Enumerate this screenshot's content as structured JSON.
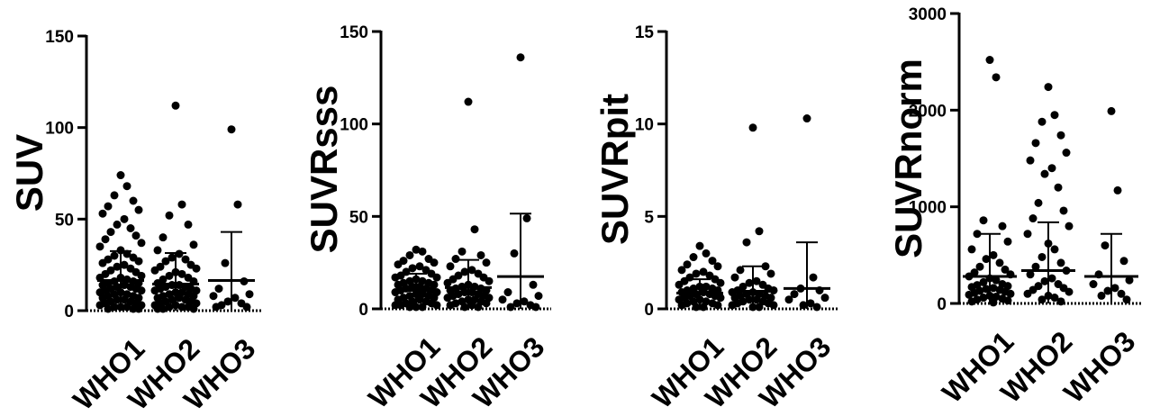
{
  "chart_data": [
    {
      "type": "scatter",
      "ylabel": "SUV",
      "ylim": [
        0,
        150
      ],
      "yticks": [
        0,
        50,
        100,
        150
      ],
      "categories": [
        "WHO1",
        "WHO2",
        "WHO3"
      ],
      "summary": [
        {
          "mean": 16.5,
          "sd_low": 0,
          "sd_high": 32.5
        },
        {
          "mean": 14.5,
          "sd_low": 0,
          "sd_high": 31.5
        },
        {
          "mean": 16.5,
          "sd_low": 0,
          "sd_high": 43
        }
      ],
      "series": [
        {
          "category": "WHO1",
          "values": [
            74,
            68,
            63,
            60,
            57,
            55,
            53,
            50,
            47,
            45,
            43,
            41,
            39,
            37,
            35,
            33,
            31,
            30,
            29,
            28,
            27,
            26,
            25,
            24,
            23,
            22,
            21,
            20,
            19,
            18,
            18,
            17,
            16,
            16,
            15,
            15,
            14,
            14,
            13,
            13,
            12,
            12,
            11,
            11,
            10,
            10,
            9,
            9,
            8,
            8,
            7,
            7,
            6,
            6,
            5,
            5,
            4,
            4,
            3,
            3,
            2,
            2,
            2,
            1,
            1,
            1
          ]
        },
        {
          "category": "WHO2",
          "values": [
            112,
            58,
            52,
            47,
            40,
            36,
            33,
            31,
            29,
            28,
            27,
            25,
            24,
            23,
            22,
            21,
            20,
            19,
            18,
            17,
            16,
            15,
            14,
            14,
            13,
            13,
            12,
            12,
            11,
            11,
            10,
            10,
            9,
            9,
            8,
            8,
            7,
            7,
            6,
            6,
            5,
            5,
            4,
            4,
            3,
            3,
            2,
            2,
            2,
            1,
            1,
            1
          ]
        },
        {
          "category": "WHO3",
          "values": [
            99,
            58,
            26,
            16,
            12,
            9,
            8,
            7,
            5,
            4,
            3,
            2,
            2
          ]
        }
      ]
    },
    {
      "type": "scatter",
      "ylabel": "SUVRsss",
      "ylim": [
        0,
        150
      ],
      "yticks": [
        0,
        50,
        100,
        150
      ],
      "categories": [
        "WHO1",
        "WHO2",
        "WHO3"
      ],
      "summary": [
        {
          "mean": 10,
          "sd_low": 2,
          "sd_high": 19
        },
        {
          "mean": 11.5,
          "sd_low": 2,
          "sd_high": 26.5
        },
        {
          "mean": 17.5,
          "sd_low": 0,
          "sd_high": 51.5
        }
      ],
      "series": [
        {
          "category": "WHO1",
          "values": [
            32,
            31,
            29,
            27,
            26,
            25,
            24,
            23,
            22,
            21,
            20,
            19,
            18,
            17,
            17,
            16,
            15,
            15,
            14,
            14,
            13,
            13,
            12,
            12,
            11,
            11,
            10,
            10,
            9,
            9,
            8,
            8,
            7,
            7,
            6,
            6,
            5,
            5,
            4,
            4,
            3,
            3,
            2,
            2,
            2,
            1,
            1,
            1
          ]
        },
        {
          "category": "WHO2",
          "values": [
            112,
            43,
            31,
            29,
            27,
            25,
            23,
            21,
            20,
            19,
            18,
            17,
            16,
            15,
            14,
            13,
            12,
            12,
            11,
            11,
            10,
            10,
            9,
            9,
            8,
            8,
            7,
            7,
            6,
            6,
            5,
            5,
            4,
            4,
            3,
            3,
            2,
            2,
            1,
            1
          ]
        },
        {
          "category": "WHO3",
          "values": [
            136,
            49,
            30,
            13,
            9,
            7,
            5,
            4,
            3,
            2,
            1,
            1
          ]
        }
      ]
    },
    {
      "type": "scatter",
      "ylabel": "SUVRpit",
      "ylim": [
        0,
        15
      ],
      "yticks": [
        0,
        5,
        10,
        15
      ],
      "categories": [
        "WHO1",
        "WHO2",
        "WHO3"
      ],
      "summary": [
        {
          "mean": 0.85,
          "sd_low": 0.2,
          "sd_high": 1.6
        },
        {
          "mean": 0.95,
          "sd_low": 0.2,
          "sd_high": 2.3
        },
        {
          "mean": 1.1,
          "sd_low": 0,
          "sd_high": 3.6
        }
      ],
      "series": [
        {
          "category": "WHO1",
          "values": [
            3.4,
            3.0,
            2.8,
            2.6,
            2.4,
            2.3,
            2.1,
            2.0,
            1.9,
            1.8,
            1.7,
            1.6,
            1.5,
            1.4,
            1.3,
            1.2,
            1.2,
            1.1,
            1.1,
            1.0,
            1.0,
            0.9,
            0.9,
            0.8,
            0.8,
            0.7,
            0.7,
            0.6,
            0.6,
            0.5,
            0.5,
            0.4,
            0.4,
            0.3,
            0.3,
            0.2,
            0.2,
            0.1,
            0.1
          ]
        },
        {
          "category": "WHO2",
          "values": [
            9.8,
            4.2,
            3.6,
            2.3,
            2.1,
            1.9,
            1.7,
            1.5,
            1.4,
            1.3,
            1.2,
            1.1,
            1.0,
            1.0,
            0.9,
            0.9,
            0.8,
            0.8,
            0.7,
            0.7,
            0.6,
            0.6,
            0.5,
            0.5,
            0.4,
            0.4,
            0.3,
            0.3,
            0.2,
            0.2,
            0.1,
            0.1
          ]
        },
        {
          "category": "WHO3",
          "values": [
            10.3,
            1.7,
            1.1,
            1.0,
            0.8,
            0.6,
            0.5,
            0.3,
            0.2,
            0.1
          ]
        }
      ]
    },
    {
      "type": "scatter",
      "ylabel": "SUVRnorm",
      "ylim": [
        0,
        3000
      ],
      "yticks": [
        0,
        1000,
        2000,
        3000
      ],
      "categories": [
        "WHO1",
        "WHO2",
        "WHO3"
      ],
      "summary": [
        {
          "mean": 280,
          "sd_low": 0,
          "sd_high": 720
        },
        {
          "mean": 340,
          "sd_low": 0,
          "sd_high": 840
        },
        {
          "mean": 280,
          "sd_low": 0,
          "sd_high": 720
        }
      ],
      "series": [
        {
          "category": "WHO1",
          "values": [
            2520,
            2340,
            860,
            800,
            720,
            640,
            560,
            500,
            460,
            420,
            380,
            350,
            320,
            300,
            280,
            260,
            240,
            220,
            200,
            190,
            180,
            170,
            160,
            150,
            140,
            130,
            120,
            110,
            100,
            90,
            80,
            70,
            60,
            50,
            40,
            30,
            20,
            10
          ]
        },
        {
          "category": "WHO2",
          "values": [
            2240,
            1950,
            1880,
            1740,
            1660,
            1560,
            1480,
            1400,
            1340,
            1200,
            1040,
            960,
            880,
            800,
            720,
            620,
            560,
            480,
            420,
            380,
            340,
            300,
            260,
            230,
            200,
            180,
            160,
            140,
            120,
            100,
            80,
            60,
            40,
            20
          ]
        },
        {
          "category": "WHO3",
          "values": [
            1990,
            1170,
            600,
            440,
            300,
            240,
            200,
            160,
            130,
            100,
            80,
            40
          ]
        }
      ]
    }
  ]
}
